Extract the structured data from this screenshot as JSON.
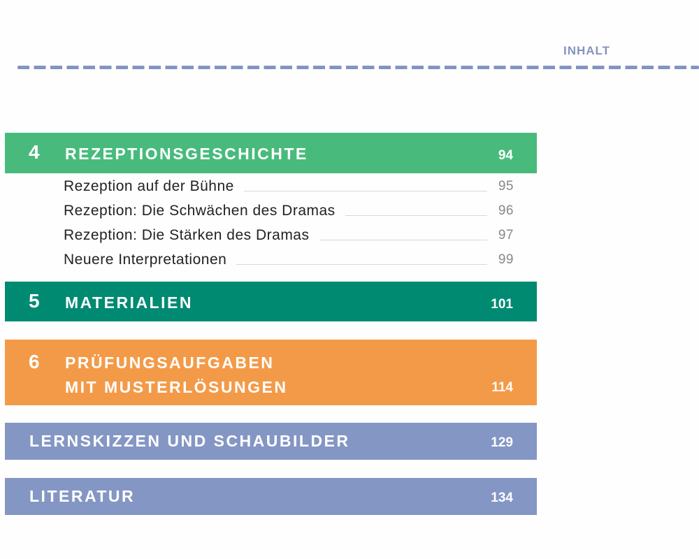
{
  "header": {
    "title": "INHALT"
  },
  "colors": {
    "green": "#48bb7c",
    "teal": "#008a72",
    "orange": "#f39a48",
    "blue": "#8496c4"
  },
  "chapters": [
    {
      "number": "4",
      "title": "REZEPTIONSGESCHICHTE",
      "page": "94",
      "items": [
        {
          "label": "Rezeption auf der Bühne",
          "page": "95"
        },
        {
          "label": "Rezeption: Die Schwächen des Dramas",
          "page": "96"
        },
        {
          "label": "Rezeption: Die Stärken des Dramas",
          "page": "97"
        },
        {
          "label": "Neuere Interpretationen",
          "page": "99"
        }
      ]
    },
    {
      "number": "5",
      "title": "MATERIALIEN",
      "page": "101"
    },
    {
      "number": "6",
      "title_line1": "PRÜFUNGSAUFGABEN",
      "title_line2": "MIT MUSTERLÖSUNGEN",
      "page": "114"
    },
    {
      "title": "LERNSKIZZEN UND SCHAUBILDER",
      "page": "129"
    },
    {
      "title": "LITERATUR",
      "page": "134"
    }
  ]
}
